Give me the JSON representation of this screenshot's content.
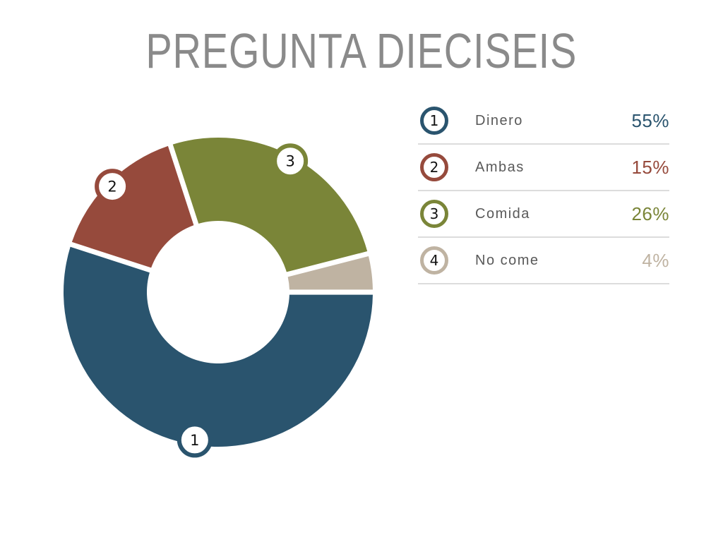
{
  "title": "PREGUNTA DIECISEIS",
  "chart_data": {
    "type": "pie",
    "subtype": "donut",
    "title": "PREGUNTA DIECISEIS",
    "unit": "%",
    "start_angle_deg_clockwise_from_top": 90,
    "direction": "clockwise",
    "donut_hole_ratio": 0.46,
    "legend_position": "right",
    "slices": [
      {
        "num": "1",
        "label": "Dinero",
        "value": 55,
        "value_label": "55%",
        "color": "#2a546e",
        "chart_badge": true
      },
      {
        "num": "2",
        "label": "Ambas",
        "value": 15,
        "value_label": "15%",
        "color": "#964a3c",
        "chart_badge": true
      },
      {
        "num": "3",
        "label": "Comida",
        "value": 26,
        "value_label": "26%",
        "color": "#7a8538",
        "chart_badge": true
      },
      {
        "num": "4",
        "label": "No come",
        "value": 4,
        "value_label": "4%",
        "color": "#bfb3a2",
        "chart_badge": false
      }
    ]
  },
  "colors": {
    "background": "#ffffff",
    "title_text": "#8a8a8a",
    "legend_label": "#595959",
    "badge_number": "#111111",
    "badge_fill": "#ffffff",
    "divider": "#dcdcdc"
  }
}
